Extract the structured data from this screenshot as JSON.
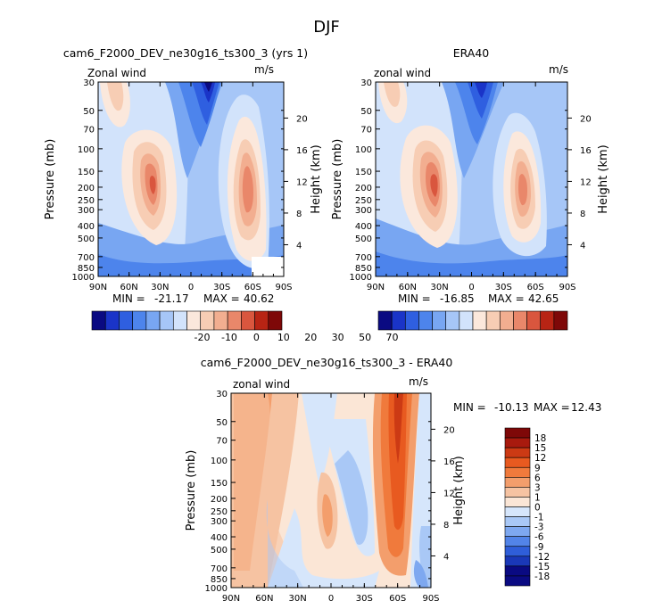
{
  "page": {
    "season": "DJF",
    "min_label": "MIN =",
    "max_label": "MAX ="
  },
  "chart_data": [
    {
      "type": "heatmap",
      "title": "cam6_F2000_DEV_ne30g16_ts300_3 (yrs 1)",
      "subtitle_left": "Zonal wind",
      "units": "m/s",
      "xlabel": "",
      "ylabel": "Pressure (mb)",
      "ylabel_right": "Height (km)",
      "x_ticks": [
        "90N",
        "60N",
        "30N",
        "0",
        "30S",
        "60S",
        "90S"
      ],
      "y_ticks": [
        "30",
        "50",
        "70",
        "100",
        "150",
        "200",
        "250",
        "300",
        "400",
        "500",
        "700",
        "850",
        "1000"
      ],
      "right_ticks": [
        "4",
        "8",
        "12",
        "16",
        "20"
      ],
      "min": "-21.17",
      "max": "40.62",
      "colorbar_levels": [
        "-20",
        "-10",
        "0",
        "10",
        "20",
        "30",
        "50",
        "70"
      ],
      "jets": [
        {
          "lat": 30,
          "lev": 200,
          "value": 40.62
        },
        {
          "lat": -50,
          "lev": 200,
          "value": 33
        }
      ]
    },
    {
      "type": "heatmap",
      "title": "ERA40",
      "subtitle_left": "zonal wind",
      "units": "m/s",
      "xlabel": "",
      "ylabel": "Pressure (mb)",
      "ylabel_right": "Height (km)",
      "x_ticks": [
        "90N",
        "60N",
        "30N",
        "0",
        "30S",
        "60S",
        "90S"
      ],
      "y_ticks": [
        "30",
        "50",
        "70",
        "100",
        "150",
        "200",
        "250",
        "300",
        "400",
        "500",
        "700",
        "850",
        "1000"
      ],
      "right_ticks": [
        "4",
        "8",
        "12",
        "16",
        "20"
      ],
      "min": "-16.85",
      "max": "42.65",
      "colorbar_levels": [
        "-20",
        "-10",
        "0",
        "10",
        "20",
        "30",
        "50",
        "70"
      ],
      "jets": [
        {
          "lat": 30,
          "lev": 200,
          "value": 42.65
        },
        {
          "lat": -45,
          "lev": 250,
          "value": 33
        }
      ]
    },
    {
      "type": "heatmap",
      "title": "cam6_F2000_DEV_ne30g16_ts300_3 - ERA40",
      "subtitle_left": "zonal wind",
      "units": "m/s",
      "xlabel": "",
      "ylabel": "Pressure (mb)",
      "ylabel_right": "Height (km)",
      "x_ticks": [
        "90N",
        "60N",
        "30N",
        "0",
        "30S",
        "60S",
        "90S"
      ],
      "y_ticks": [
        "30",
        "50",
        "70",
        "100",
        "150",
        "200",
        "250",
        "300",
        "400",
        "500",
        "700",
        "850",
        "1000"
      ],
      "right_ticks": [
        "4",
        "8",
        "12",
        "16",
        "20"
      ],
      "min": "-10.13",
      "max": "12.43",
      "colorbar_levels": [
        "18",
        "15",
        "12",
        "9",
        "6",
        "3",
        "1",
        "0",
        "-1",
        "-3",
        "-6",
        "-9",
        "-12",
        "-15",
        "-18"
      ]
    }
  ],
  "colors": {
    "abs_scale": [
      "#0a0a82",
      "#1a34c8",
      "#2f5fe0",
      "#4d84ec",
      "#78a6f2",
      "#a6c6f7",
      "#d2e3fb",
      "#fbe8dc",
      "#f7cdb4",
      "#f2ae90",
      "#e9876a",
      "#d9563e",
      "#b82414",
      "#7e0808"
    ],
    "diff_scale": [
      "#7e0808",
      "#a81a0e",
      "#cc3a14",
      "#e85a20",
      "#f07a3c",
      "#f39e6c",
      "#f6c3a2",
      "#fbe6d6",
      "#d6e6fb",
      "#a9c8f6",
      "#7ea8f0",
      "#5284e8",
      "#2f5ed9",
      "#1a38b8",
      "#0a0a82"
    ]
  }
}
